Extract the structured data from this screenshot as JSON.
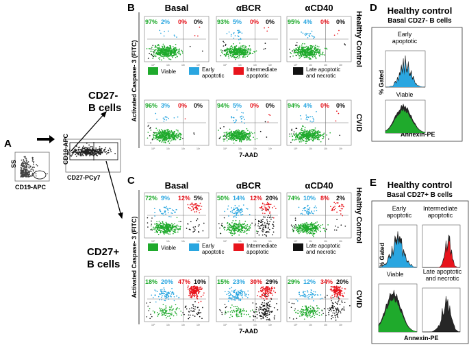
{
  "panel_letters": {
    "A": "A",
    "B": "B",
    "C": "C",
    "D": "D",
    "E": "E"
  },
  "colors": {
    "viable": "#1faa2c",
    "early": "#2aa6e0",
    "intermediate": "#e8141c",
    "late": "#111111"
  },
  "panelA": {
    "plot1": {
      "ylabel": "SS",
      "xlabel": "CD19-APC"
    },
    "plot2": {
      "ylabel": "CD19-APC",
      "xlabel": "CD27-PCy7"
    },
    "cd27neg": "CD27-\nB cells",
    "cd27pos": "CD27+\nB cells"
  },
  "panelB": {
    "conditions": [
      "Basal",
      "αBCR",
      "αCD40"
    ],
    "rows": [
      {
        "label": "Healthy Control",
        "values": [
          [
            "97%",
            "2%",
            "0%",
            "0%"
          ],
          [
            "93%",
            "5%",
            "0%",
            "0%"
          ],
          [
            "95%",
            "4%",
            "0%",
            "0%"
          ]
        ]
      },
      {
        "label": "CVID",
        "values": [
          [
            "96%",
            "3%",
            "0%",
            "0%"
          ],
          [
            "94%",
            "5%",
            "0%",
            "0%"
          ],
          [
            "94%",
            "4%",
            "0%",
            "0%"
          ]
        ]
      }
    ],
    "ylabel": "Activated Caspase- 3 (FITC)",
    "xlabel": "7-AAD"
  },
  "panelC": {
    "conditions": [
      "Basal",
      "αBCR",
      "αCD40"
    ],
    "rows": [
      {
        "label": "Healthy Control",
        "values": [
          [
            "72%",
            "9%",
            "12%",
            "5%"
          ],
          [
            "50%",
            "14%",
            "12%",
            "20%"
          ],
          [
            "74%",
            "10%",
            "8%",
            "2%"
          ]
        ]
      },
      {
        "label": "CVID",
        "values": [
          [
            "18%",
            "20%",
            "47%",
            "10%"
          ],
          [
            "15%",
            "23%",
            "30%",
            "29%"
          ],
          [
            "29%",
            "12%",
            "34%",
            "20%"
          ]
        ]
      }
    ],
    "ylabel": "Activated Caspase- 3 (FITC)",
    "xlabel": "7-AAD"
  },
  "legend": {
    "viable": "Viable",
    "early": "Early\napoptotic",
    "intermediate": "Intermediate\napoptotic",
    "late": "Late apoptotic\nand necrotic"
  },
  "panelD": {
    "title": "Healthy control",
    "subtitle": "Basal CD27- B cells",
    "hist1": "Early\napoptotic",
    "hist2": "Viable",
    "ylabel": "% Gated",
    "xlabel": "Annexin-PE"
  },
  "panelE": {
    "title": "Healthy control",
    "subtitle": "Basal CD27+ B cells",
    "hist1": "Early\napoptotic",
    "hist2": "Intermediate\napoptotic",
    "hist3": "Viable",
    "hist4": "Late apoptotic\nand necrotic",
    "ylabel": "% Gated",
    "xlabel": "Annexin-PE"
  },
  "tick_labels": [
    "10⁰",
    "10¹",
    "10²",
    "10³"
  ]
}
